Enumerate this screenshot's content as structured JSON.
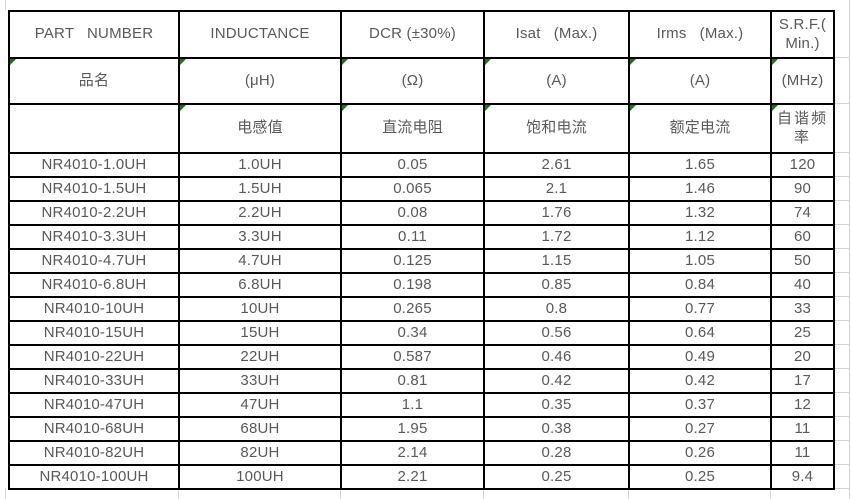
{
  "table": {
    "title": "NR4010 inductor specification table",
    "header_row1": [
      "PART   NUMBER",
      "INDUCTANCE",
      "DCR (±30%)",
      "Isat   (Max.)",
      "Irms   (Max.)",
      "S.R.F.(\nMin.)"
    ],
    "header_row2": [
      "品名",
      "(μH)",
      "(Ω)",
      "(A)",
      "(A)",
      "(MHz)"
    ],
    "header_row3": [
      "",
      "电感值",
      "直流电阻",
      "饱和电流",
      "额定电流",
      "自谐频率"
    ],
    "columns_semantic": [
      "part-number",
      "inductance",
      "dcr",
      "isat",
      "irms",
      "srf"
    ],
    "rows": [
      [
        "NR4010-1.0UH",
        "1.0UH",
        "0.05",
        "2.61",
        "1.65",
        "120"
      ],
      [
        "NR4010-1.5UH",
        "1.5UH",
        "0.065",
        "2.1",
        "1.46",
        "90"
      ],
      [
        "NR4010-2.2UH",
        "2.2UH",
        "0.08",
        "1.76",
        "1.32",
        "74"
      ],
      [
        "NR4010-3.3UH",
        "3.3UH",
        "0.11",
        "1.72",
        "1.12",
        "60"
      ],
      [
        "NR4010-4.7UH",
        "4.7UH",
        "0.125",
        "1.15",
        "1.05",
        "50"
      ],
      [
        "NR4010-6.8UH",
        "6.8UH",
        "0.198",
        "0.85",
        "0.84",
        "40"
      ],
      [
        "NR4010-10UH",
        "10UH",
        "0.265",
        "0.8",
        "0.77",
        "33"
      ],
      [
        "NR4010-15UH",
        "15UH",
        "0.34",
        "0.56",
        "0.64",
        "25"
      ],
      [
        "NR4010-22UH",
        "22UH",
        "0.587",
        "0.46",
        "0.49",
        "20"
      ],
      [
        "NR4010-33UH",
        "33UH",
        "0.81",
        "0.42",
        "0.42",
        "17"
      ],
      [
        "NR4010-47UH",
        "47UH",
        "1.1",
        "0.35",
        "0.37",
        "12"
      ],
      [
        "NR4010-68UH",
        "68UH",
        "1.95",
        "0.38",
        "0.27",
        "11"
      ],
      [
        "NR4010-82UH",
        "82UH",
        "2.14",
        "0.28",
        "0.26",
        "11"
      ],
      [
        "NR4010-100UH",
        "100UH",
        "2.21",
        "0.25",
        "0.25",
        "9.4"
      ]
    ]
  },
  "icons": {
    "flag_triangle": "excel-green-flag-triangle"
  },
  "colors": {
    "text": "#595959",
    "text_cjk": "#818181",
    "table_border": "#000000",
    "flag_green": "#117a11",
    "gridline": "#d4d4d4",
    "background": "#ffffff"
  }
}
